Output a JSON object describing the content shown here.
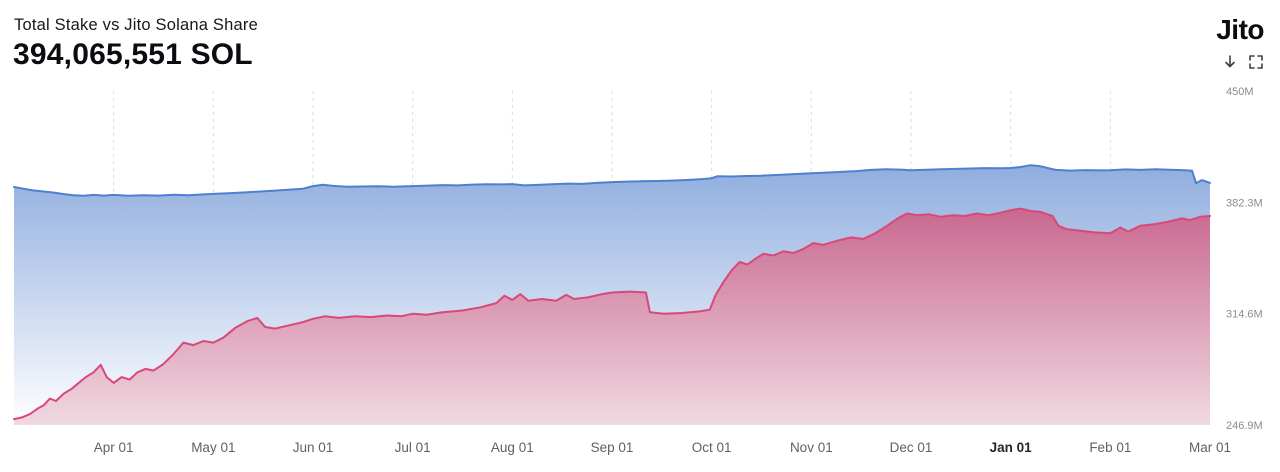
{
  "header": {
    "title": "Total Stake vs Jito Solana Share",
    "value": "394,065,551 SOL",
    "logo": "Jito"
  },
  "icons": {
    "download": "arrow-down",
    "expand": "fullscreen-corners"
  },
  "chart_data": {
    "type": "area",
    "title": "Total Stake vs Jito Solana Share",
    "current_value_sol": "394,065,551",
    "unit": "SOL",
    "grid": "vertical-dashed",
    "legend_position": "none",
    "x_range": [
      0,
      12
    ],
    "y_range": [
      246.9,
      450
    ],
    "y_ticks": [
      {
        "label": "450M",
        "value": 450
      },
      {
        "label": "382.3M",
        "value": 382.3
      },
      {
        "label": "314.6M",
        "value": 314.6
      },
      {
        "label": "246.9M",
        "value": 246.9
      }
    ],
    "x_ticks": [
      {
        "label": "Apr 01",
        "t": 1,
        "grid": true,
        "bold": false
      },
      {
        "label": "May 01",
        "t": 2,
        "grid": true,
        "bold": false
      },
      {
        "label": "Jun 01",
        "t": 3,
        "grid": true,
        "bold": false
      },
      {
        "label": "Jul 01",
        "t": 4,
        "grid": true,
        "bold": false
      },
      {
        "label": "Aug 01",
        "t": 5,
        "grid": true,
        "bold": false
      },
      {
        "label": "Sep 01",
        "t": 6,
        "grid": true,
        "bold": false
      },
      {
        "label": "Oct 01",
        "t": 7,
        "grid": true,
        "bold": false
      },
      {
        "label": "Nov 01",
        "t": 8,
        "grid": true,
        "bold": false
      },
      {
        "label": "Dec 01",
        "t": 9,
        "grid": true,
        "bold": false
      },
      {
        "label": "Jan 01",
        "t": 10,
        "grid": true,
        "bold": true
      },
      {
        "label": "Feb 01",
        "t": 11,
        "grid": true,
        "bold": false
      },
      {
        "label": "Mar 01",
        "t": 12,
        "grid": false,
        "bold": false
      }
    ],
    "series": [
      {
        "name": "Total Stake",
        "line_color": "#4f7fd0",
        "fill_top": "#8fadde",
        "fill_bottom": "#ffffff",
        "points": [
          [
            0,
            391.6
          ],
          [
            0.1,
            390.5
          ],
          [
            0.2,
            389.5
          ],
          [
            0.3,
            388.9
          ],
          [
            0.4,
            388.2
          ],
          [
            0.5,
            387.3
          ],
          [
            0.6,
            386.6
          ],
          [
            0.7,
            386.3
          ],
          [
            0.8,
            386.8
          ],
          [
            0.9,
            386.4
          ],
          [
            1,
            386.8
          ],
          [
            1.15,
            386.3
          ],
          [
            1.3,
            386.6
          ],
          [
            1.45,
            386.4
          ],
          [
            1.6,
            386.9
          ],
          [
            1.75,
            386.6
          ],
          [
            1.9,
            387.1
          ],
          [
            2,
            387.4
          ],
          [
            2.15,
            387.8
          ],
          [
            2.3,
            388.3
          ],
          [
            2.45,
            388.8
          ],
          [
            2.6,
            389.4
          ],
          [
            2.75,
            389.9
          ],
          [
            2.9,
            390.6
          ],
          [
            3,
            392.2
          ],
          [
            3.1,
            393
          ],
          [
            3.2,
            392.3
          ],
          [
            3.35,
            391.8
          ],
          [
            3.5,
            391.9
          ],
          [
            3.65,
            392.1
          ],
          [
            3.8,
            391.8
          ],
          [
            4,
            392.2
          ],
          [
            4.15,
            392.5
          ],
          [
            4.3,
            392.8
          ],
          [
            4.45,
            392.6
          ],
          [
            4.6,
            393.1
          ],
          [
            4.75,
            393.3
          ],
          [
            4.9,
            393.2
          ],
          [
            5,
            393.4
          ],
          [
            5.12,
            392.6
          ],
          [
            5.25,
            392.9
          ],
          [
            5.4,
            393.3
          ],
          [
            5.55,
            393.7
          ],
          [
            5.7,
            393.5
          ],
          [
            5.85,
            394.1
          ],
          [
            6,
            394.6
          ],
          [
            6.15,
            394.9
          ],
          [
            6.3,
            395.1
          ],
          [
            6.45,
            395.3
          ],
          [
            6.6,
            395.5
          ],
          [
            6.75,
            395.9
          ],
          [
            6.9,
            396.4
          ],
          [
            7,
            397
          ],
          [
            7.06,
            398.2
          ],
          [
            7.2,
            398
          ],
          [
            7.35,
            398.3
          ],
          [
            7.5,
            398.5
          ],
          [
            7.65,
            398.9
          ],
          [
            7.8,
            399.4
          ],
          [
            8,
            400
          ],
          [
            8.15,
            400.4
          ],
          [
            8.3,
            400.8
          ],
          [
            8.45,
            401.3
          ],
          [
            8.6,
            402
          ],
          [
            8.75,
            402.4
          ],
          [
            8.9,
            402.2
          ],
          [
            9,
            401.8
          ],
          [
            9.15,
            402.1
          ],
          [
            9.3,
            402.4
          ],
          [
            9.45,
            402.6
          ],
          [
            9.6,
            402.9
          ],
          [
            9.75,
            403.1
          ],
          [
            9.9,
            403
          ],
          [
            10,
            403.2
          ],
          [
            10.1,
            403.8
          ],
          [
            10.2,
            404.9
          ],
          [
            10.3,
            404.2
          ],
          [
            10.45,
            402
          ],
          [
            10.6,
            401.6
          ],
          [
            10.75,
            401.9
          ],
          [
            10.9,
            401.7
          ],
          [
            11,
            401.8
          ],
          [
            11.15,
            402.3
          ],
          [
            11.3,
            402
          ],
          [
            11.45,
            402.4
          ],
          [
            11.6,
            402.1
          ],
          [
            11.75,
            401.8
          ],
          [
            11.82,
            401.5
          ],
          [
            11.86,
            394
          ],
          [
            11.92,
            395.8
          ],
          [
            12,
            394.1
          ]
        ]
      },
      {
        "name": "Jito Solana Share",
        "line_color": "#d8487a",
        "fill_top": "#c9688f",
        "fill_bottom": "#f0d9e1",
        "points": [
          [
            0,
            250.5
          ],
          [
            0.08,
            251.5
          ],
          [
            0.16,
            253.5
          ],
          [
            0.24,
            257
          ],
          [
            0.3,
            259
          ],
          [
            0.36,
            263
          ],
          [
            0.42,
            261.5
          ],
          [
            0.5,
            266
          ],
          [
            0.58,
            269
          ],
          [
            0.64,
            272
          ],
          [
            0.72,
            276
          ],
          [
            0.8,
            279
          ],
          [
            0.87,
            283.5
          ],
          [
            0.93,
            276
          ],
          [
            1,
            272.5
          ],
          [
            1.08,
            276
          ],
          [
            1.16,
            274.5
          ],
          [
            1.24,
            279
          ],
          [
            1.32,
            281
          ],
          [
            1.4,
            280
          ],
          [
            1.5,
            284
          ],
          [
            1.6,
            290
          ],
          [
            1.7,
            297
          ],
          [
            1.8,
            295.5
          ],
          [
            1.9,
            298
          ],
          [
            2,
            297
          ],
          [
            2.1,
            300
          ],
          [
            2.22,
            306
          ],
          [
            2.34,
            310
          ],
          [
            2.44,
            312
          ],
          [
            2.52,
            306.5
          ],
          [
            2.62,
            305.5
          ],
          [
            2.76,
            307.5
          ],
          [
            2.9,
            309.5
          ],
          [
            3,
            311.5
          ],
          [
            3.12,
            313
          ],
          [
            3.26,
            312
          ],
          [
            3.42,
            313
          ],
          [
            3.58,
            312.5
          ],
          [
            3.74,
            313.5
          ],
          [
            3.88,
            313
          ],
          [
            4,
            314.5
          ],
          [
            4.14,
            314
          ],
          [
            4.3,
            315.5
          ],
          [
            4.5,
            316.5
          ],
          [
            4.68,
            318.5
          ],
          [
            4.84,
            321
          ],
          [
            4.92,
            325.5
          ],
          [
            5,
            323
          ],
          [
            5.08,
            326.5
          ],
          [
            5.16,
            322.5
          ],
          [
            5.3,
            323.5
          ],
          [
            5.44,
            322.5
          ],
          [
            5.54,
            326
          ],
          [
            5.62,
            323.5
          ],
          [
            5.76,
            324.5
          ],
          [
            5.9,
            326.5
          ],
          [
            6,
            327.5
          ],
          [
            6.18,
            328
          ],
          [
            6.34,
            327.5
          ],
          [
            6.38,
            315.5
          ],
          [
            6.52,
            314.5
          ],
          [
            6.7,
            315
          ],
          [
            6.88,
            316
          ],
          [
            6.98,
            317
          ],
          [
            7.04,
            326
          ],
          [
            7.12,
            334
          ],
          [
            7.2,
            341
          ],
          [
            7.28,
            346
          ],
          [
            7.36,
            344.5
          ],
          [
            7.44,
            348
          ],
          [
            7.52,
            351
          ],
          [
            7.62,
            350
          ],
          [
            7.72,
            352.5
          ],
          [
            7.82,
            351.5
          ],
          [
            7.92,
            354
          ],
          [
            8.02,
            357.5
          ],
          [
            8.12,
            356.5
          ],
          [
            8.26,
            359
          ],
          [
            8.4,
            361
          ],
          [
            8.52,
            360
          ],
          [
            8.64,
            363.5
          ],
          [
            8.76,
            368
          ],
          [
            8.88,
            373
          ],
          [
            8.96,
            375.5
          ],
          [
            9.06,
            374.5
          ],
          [
            9.18,
            375
          ],
          [
            9.3,
            373.5
          ],
          [
            9.42,
            374.5
          ],
          [
            9.54,
            374
          ],
          [
            9.66,
            375.5
          ],
          [
            9.78,
            374.5
          ],
          [
            9.9,
            376
          ],
          [
            10,
            377.5
          ],
          [
            10.1,
            378.5
          ],
          [
            10.2,
            377
          ],
          [
            10.3,
            376.5
          ],
          [
            10.42,
            374
          ],
          [
            10.48,
            368
          ],
          [
            10.56,
            366
          ],
          [
            10.7,
            365
          ],
          [
            10.84,
            364
          ],
          [
            11,
            363.5
          ],
          [
            11.1,
            367
          ],
          [
            11.18,
            364.5
          ],
          [
            11.3,
            368
          ],
          [
            11.44,
            369
          ],
          [
            11.58,
            370.5
          ],
          [
            11.72,
            372.5
          ],
          [
            11.8,
            371.5
          ],
          [
            11.9,
            373.5
          ],
          [
            12,
            374
          ]
        ]
      }
    ],
    "style": {
      "gridline_color": "#d9dbde",
      "y_label_color": "#878c94",
      "x_label_color": "#5d6269",
      "x_label_bold_color": "#22262d",
      "background": "#ffffff"
    }
  }
}
